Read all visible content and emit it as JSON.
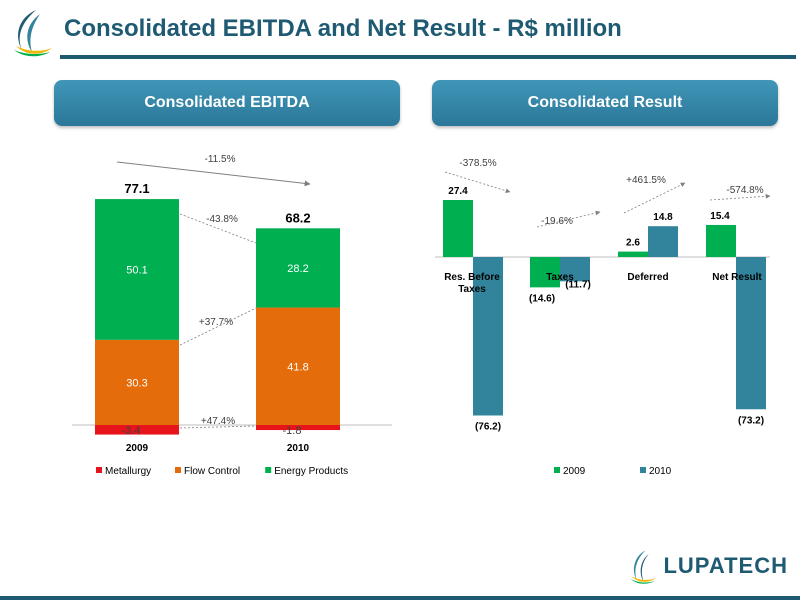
{
  "title": "Consolidated EBITDA and Net Result - R$ million",
  "panels": {
    "left": "Consolidated EBITDA",
    "right": "Consolidated Result"
  },
  "brand": "LUPATECH",
  "colors": {
    "metallurgy": "#e8141c",
    "flow_control": "#e46c0a",
    "energy": "#00b050",
    "y2009": "#00b050",
    "y2010": "#31849b",
    "title": "#1f5a73"
  },
  "chart_data": [
    {
      "type": "bar",
      "stacked": true,
      "categories": [
        "2009",
        "2010"
      ],
      "series": [
        {
          "name": "Metallurgy",
          "values": [
            -3.4,
            -1.8
          ],
          "labels": [
            "-3.4",
            "-1.8"
          ]
        },
        {
          "name": "Flow Control",
          "values": [
            30.3,
            41.8
          ],
          "labels": [
            "30.3",
            "41.8"
          ]
        },
        {
          "name": "Energy Products",
          "values": [
            50.1,
            28.2
          ],
          "labels": [
            "50.1",
            "28.2"
          ]
        }
      ],
      "totals": [
        "77.1",
        "68.2"
      ],
      "annotations": {
        "total_change": "-11.5%",
        "energy_change": "-43.8%",
        "flow_change": "+37.7%",
        "metallurgy_change": "+47.4%"
      },
      "legend": "bottom"
    },
    {
      "type": "bar",
      "categories": [
        "Res. Before Taxes",
        "Taxes",
        "Deferred",
        "Net Result"
      ],
      "series": [
        {
          "name": "2009",
          "values": [
            27.4,
            -14.6,
            2.6,
            15.4
          ],
          "labels": [
            "27.4",
            "(14.6)",
            "2.6",
            "15.4"
          ]
        },
        {
          "name": "2010",
          "values": [
            -76.2,
            -11.7,
            14.8,
            -73.2
          ],
          "labels": [
            "(76.2)",
            "(11.7)",
            "14.8",
            "(73.2)"
          ]
        }
      ],
      "annotations": [
        "-378.5%",
        "-19.6%",
        "+461.5%",
        "-574.8%"
      ],
      "legend": "bottom"
    }
  ]
}
